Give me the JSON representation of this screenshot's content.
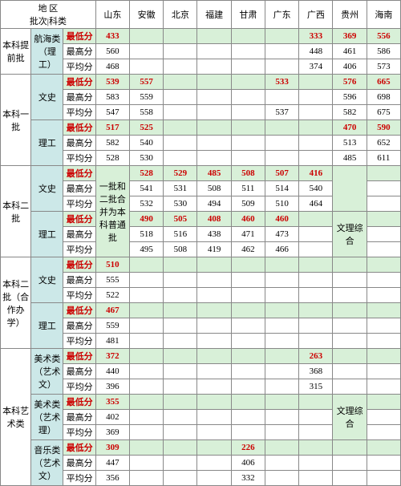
{
  "header": {
    "region_label": "地 区\n批次|科类",
    "provinces": [
      "山东",
      "安徽",
      "北京",
      "福建",
      "甘肃",
      "广东",
      "广西",
      "贵州",
      "海南"
    ]
  },
  "score_labels": {
    "min": "最低分",
    "max": "最高分",
    "avg": "平均分"
  },
  "sections": [
    {
      "batch": "本科提前批",
      "groups": [
        {
          "category": "航海类（理工）",
          "rows": [
            {
              "label": "min",
              "cells": [
                "433",
                "",
                "",
                "",
                "",
                "",
                "333",
                "369",
                "556"
              ],
              "min": true
            },
            {
              "label": "max",
              "cells": [
                "560",
                "",
                "",
                "",
                "",
                "",
                "448",
                "461",
                "586"
              ]
            },
            {
              "label": "avg",
              "cells": [
                "468",
                "",
                "",
                "",
                "",
                "",
                "374",
                "406",
                "573"
              ]
            }
          ]
        }
      ]
    },
    {
      "batch": "本科一批",
      "groups": [
        {
          "category": "文史",
          "rows": [
            {
              "label": "min",
              "cells": [
                "539",
                "557",
                "",
                "",
                "",
                "533",
                "",
                "576",
                "665"
              ],
              "min": true
            },
            {
              "label": "max",
              "cells": [
                "583",
                "559",
                "",
                "",
                "",
                "",
                "",
                "596",
                "698"
              ]
            },
            {
              "label": "avg",
              "cells": [
                "547",
                "558",
                "",
                "",
                "",
                "537",
                "",
                "582",
                "675"
              ]
            }
          ]
        },
        {
          "category": "理工",
          "rows": [
            {
              "label": "min",
              "cells": [
                "517",
                "525",
                "",
                "",
                "",
                "",
                "",
                "470",
                "590"
              ],
              "min": true
            },
            {
              "label": "max",
              "cells": [
                "582",
                "540",
                "",
                "",
                "",
                "",
                "",
                "513",
                "652"
              ]
            },
            {
              "label": "avg",
              "cells": [
                "528",
                "530",
                "",
                "",
                "",
                "",
                "",
                "485",
                "611"
              ]
            }
          ]
        }
      ]
    },
    {
      "batch": "本科二批",
      "merge_note": {
        "col1": "一批和二批合并为本科普通批",
        "col8_top": "",
        "col8_bot": "文理综合"
      },
      "groups": [
        {
          "category": "文史",
          "rows": [
            {
              "label": "min",
              "cells": [
                "",
                "528",
                "529",
                "485",
                "508",
                "507",
                "416",
                "",
                ""
              ],
              "min": true
            },
            {
              "label": "max",
              "cells": [
                "",
                "541",
                "531",
                "508",
                "511",
                "514",
                "540",
                "",
                ""
              ]
            },
            {
              "label": "avg",
              "cells": [
                "",
                "532",
                "530",
                "494",
                "509",
                "510",
                "464",
                "",
                ""
              ]
            }
          ]
        },
        {
          "category": "理工",
          "rows": [
            {
              "label": "min",
              "cells": [
                "",
                "490",
                "505",
                "408",
                "460",
                "460",
                "",
                "",
                ""
              ],
              "min": true
            },
            {
              "label": "max",
              "cells": [
                "",
                "518",
                "516",
                "438",
                "471",
                "473",
                "",
                "",
                ""
              ]
            },
            {
              "label": "avg",
              "cells": [
                "",
                "495",
                "508",
                "419",
                "462",
                "466",
                "",
                "",
                ""
              ]
            }
          ]
        }
      ]
    },
    {
      "batch": "本科二批（合作办学）",
      "groups": [
        {
          "category": "文史",
          "rows": [
            {
              "label": "min",
              "cells": [
                "510",
                "",
                "",
                "",
                "",
                "",
                "",
                "",
                ""
              ],
              "min": true
            },
            {
              "label": "max",
              "cells": [
                "555",
                "",
                "",
                "",
                "",
                "",
                "",
                "",
                ""
              ]
            },
            {
              "label": "avg",
              "cells": [
                "522",
                "",
                "",
                "",
                "",
                "",
                "",
                "",
                ""
              ]
            }
          ]
        },
        {
          "category": "理工",
          "rows": [
            {
              "label": "min",
              "cells": [
                "467",
                "",
                "",
                "",
                "",
                "",
                "",
                "",
                ""
              ],
              "min": true
            },
            {
              "label": "max",
              "cells": [
                "559",
                "",
                "",
                "",
                "",
                "",
                "",
                "",
                ""
              ]
            },
            {
              "label": "avg",
              "cells": [
                "481",
                "",
                "",
                "",
                "",
                "",
                "",
                "",
                ""
              ]
            }
          ]
        }
      ]
    },
    {
      "batch": "本科艺术类",
      "groups": [
        {
          "category": "美术类（艺术文）",
          "rows": [
            {
              "label": "min",
              "cells": [
                "372",
                "",
                "",
                "",
                "",
                "",
                "263",
                "",
                ""
              ],
              "min": true
            },
            {
              "label": "max",
              "cells": [
                "440",
                "",
                "",
                "",
                "",
                "",
                "368",
                "",
                ""
              ]
            },
            {
              "label": "avg",
              "cells": [
                "396",
                "",
                "",
                "",
                "",
                "",
                "315",
                "",
                ""
              ]
            }
          ]
        },
        {
          "category": "美术类（艺术理）",
          "merge8": "文理综合",
          "rows": [
            {
              "label": "min",
              "cells": [
                "355",
                "",
                "",
                "",
                "",
                "",
                "",
                "",
                ""
              ],
              "min": true
            },
            {
              "label": "max",
              "cells": [
                "402",
                "",
                "",
                "",
                "",
                "",
                "",
                "",
                ""
              ]
            },
            {
              "label": "avg",
              "cells": [
                "369",
                "",
                "",
                "",
                "",
                "",
                "",
                "",
                ""
              ]
            }
          ]
        },
        {
          "category": "音乐类（艺术文）",
          "rows": [
            {
              "label": "min",
              "cells": [
                "309",
                "",
                "",
                "",
                "226",
                "",
                "",
                "",
                ""
              ],
              "min": true
            },
            {
              "label": "max",
              "cells": [
                "447",
                "",
                "",
                "",
                "406",
                "",
                "",
                "",
                ""
              ]
            },
            {
              "label": "avg",
              "cells": [
                "356",
                "",
                "",
                "",
                "332",
                "",
                "",
                "",
                ""
              ]
            }
          ]
        }
      ]
    }
  ]
}
